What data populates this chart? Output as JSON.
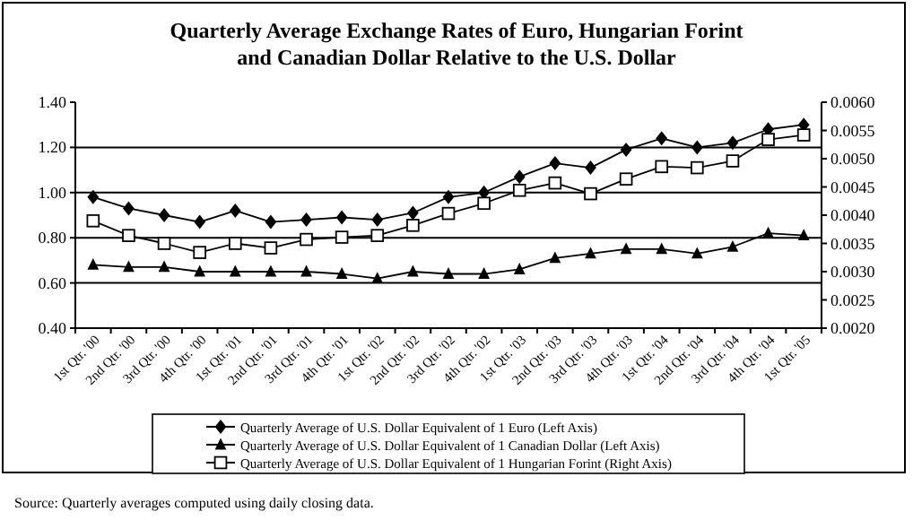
{
  "chart_data": {
    "type": "line",
    "title": "Quarterly Average Exchange Rates of Euro, Hungarian Forint and Canadian Dollar Relative to the U.S. Dollar",
    "categories": [
      "1st Qtr. '00",
      "2nd Qtr. '00",
      "3rd Qtr. '00",
      "4th Qtr. '00",
      "1st Qtr. '01",
      "2nd Qtr. '01",
      "3rd Qtr. '01",
      "4th Qtr. '01",
      "1st Qtr. '02",
      "2nd Qtr. '02",
      "3rd Qtr. '02",
      "4th Qtr. '02",
      "1st Qtr. '03",
      "2nd Qtr. '03",
      "3rd Qtr. '03",
      "4th Qtr. '03",
      "1st Qtr. '04",
      "2nd Qtr. '04",
      "3rd Qtr. '04",
      "4th Qtr. '04",
      "1st Qtr. '05"
    ],
    "series": [
      {
        "name": "Quarterly Average of U.S. Dollar Equivalent of 1 Euro (Left Axis)",
        "color": "#000000",
        "marker": "diamond",
        "values": [
          0.98,
          0.93,
          0.9,
          0.87,
          0.92,
          0.87,
          0.88,
          0.89,
          0.88,
          0.91,
          0.98,
          1.0,
          1.07,
          1.13,
          1.11,
          1.19,
          1.24,
          1.2,
          1.22,
          1.28,
          1.3
        ]
      },
      {
        "name": "Quarterly Average of U.S. Dollar Equivalent of 1 Canadian Dollar (Left Axis)",
        "color": "#000000",
        "marker": "triangle",
        "values": [
          0.68,
          0.67,
          0.67,
          0.65,
          0.65,
          0.65,
          0.65,
          0.64,
          0.62,
          0.65,
          0.64,
          0.64,
          0.66,
          0.71,
          0.73,
          0.75,
          0.75,
          0.73,
          0.76,
          0.82,
          0.81
        ]
      },
      {
        "name": "Quarterly Average of U.S. Dollar Equivalent of 1 Hungarian Forint (Right Axis)",
        "color": "#000000",
        "marker": "square",
        "axis": "y2",
        "values": [
          0.0039,
          0.00364,
          0.0035,
          0.00334,
          0.0035,
          0.00342,
          0.00357,
          0.00361,
          0.00364,
          0.00382,
          0.00403,
          0.00421,
          0.00444,
          0.00457,
          0.00438,
          0.00464,
          0.00486,
          0.00484,
          0.00496,
          0.00534,
          0.00542
        ]
      }
    ],
    "ylim": [
      0.4,
      1.4
    ],
    "yticks": [
      {
        "value": 0.4,
        "label": "0.40"
      },
      {
        "value": 0.6,
        "label": "0.60"
      },
      {
        "value": 0.8,
        "label": "0.80"
      },
      {
        "value": 1.0,
        "label": "1.00"
      },
      {
        "value": 1.2,
        "label": "1.20"
      },
      {
        "value": 1.4,
        "label": "1.40"
      }
    ],
    "y2lim": [
      0.002,
      0.006
    ],
    "y2ticks": [
      {
        "value": 0.002,
        "label": "0.0020"
      },
      {
        "value": 0.0025,
        "label": "0.0025"
      },
      {
        "value": 0.003,
        "label": "0.0030"
      },
      {
        "value": 0.0035,
        "label": "0.0035"
      },
      {
        "value": 0.004,
        "label": "0.0040"
      },
      {
        "value": 0.0045,
        "label": "0.0045"
      },
      {
        "value": 0.005,
        "label": "0.0050"
      },
      {
        "value": 0.0055,
        "label": "0.0055"
      },
      {
        "value": 0.006,
        "label": "0.0060"
      }
    ],
    "grid": "y",
    "legend": "bottom",
    "line_style": "solid",
    "annotations": [
      "Source:  Quarterly averages computed using daily closing data."
    ]
  }
}
